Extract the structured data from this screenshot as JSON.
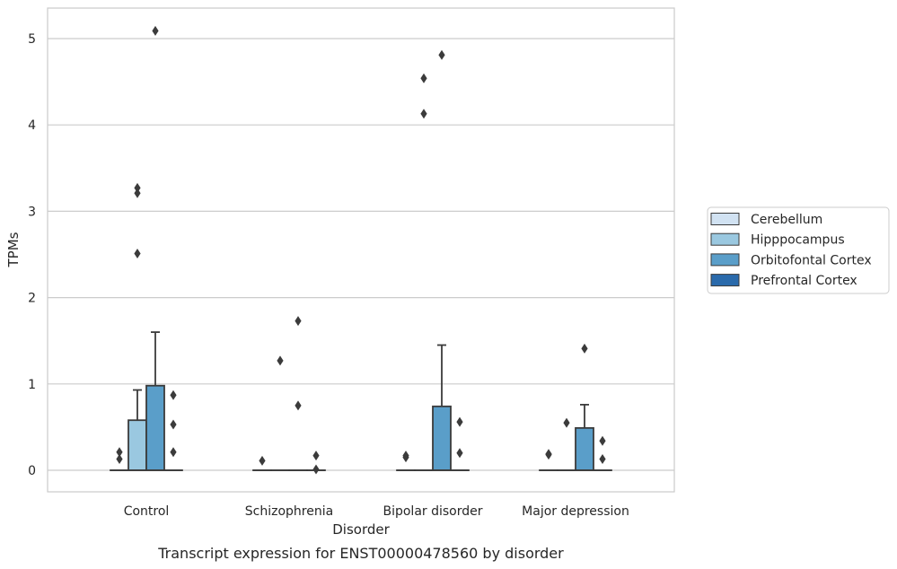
{
  "chart_data": {
    "type": "box",
    "caption": "Transcript expression for ENST00000478560 by disorder",
    "xlabel": "Disorder",
    "ylabel": "TPMs",
    "ylim": [
      -0.25,
      5.35
    ],
    "yticks": [
      0,
      1,
      2,
      3,
      4,
      5
    ],
    "grid": true,
    "legend_position": "right",
    "categories": [
      "Control",
      "Schizophrenia",
      "Bipolar disorder",
      "Major depression"
    ],
    "series": [
      {
        "name": "Cerebellum",
        "color": "#d1e2f2",
        "boxes": [
          {
            "q1": 0,
            "median": 0,
            "q3": 0,
            "whisker_low": 0,
            "whisker_high": 0,
            "outliers": [
              0.13,
              0.21
            ]
          },
          {
            "q1": 0,
            "median": 0,
            "q3": 0,
            "whisker_low": 0,
            "whisker_high": 0,
            "outliers": [
              0.11
            ]
          },
          {
            "q1": 0,
            "median": 0,
            "q3": 0,
            "whisker_low": 0,
            "whisker_high": 0,
            "outliers": [
              0.15,
              0.17
            ]
          },
          {
            "q1": 0,
            "median": 0,
            "q3": 0,
            "whisker_low": 0,
            "whisker_high": 0,
            "outliers": [
              0.18,
              0.19
            ]
          }
        ]
      },
      {
        "name": "Hipppocampus",
        "color": "#9ac8e0",
        "boxes": [
          {
            "q1": 0,
            "median": 0,
            "q3": 0.58,
            "whisker_low": 0,
            "whisker_high": 0.93,
            "outliers": [
              2.51,
              3.21,
              3.27
            ]
          },
          {
            "q1": 0,
            "median": 0,
            "q3": 0,
            "whisker_low": 0,
            "whisker_high": 0,
            "outliers": [
              1.27
            ]
          },
          {
            "q1": 0,
            "median": 0,
            "q3": 0,
            "whisker_low": 0,
            "whisker_high": 0,
            "outliers": [
              4.13,
              4.54
            ]
          },
          {
            "q1": 0,
            "median": 0,
            "q3": 0,
            "whisker_low": 0,
            "whisker_high": 0,
            "outliers": [
              0.55
            ]
          }
        ]
      },
      {
        "name": "Orbitofontal Cortex",
        "color": "#5a9ec9",
        "boxes": [
          {
            "q1": 0,
            "median": 0,
            "q3": 0.98,
            "whisker_low": 0,
            "whisker_high": 1.6,
            "outliers": [
              5.09
            ]
          },
          {
            "q1": 0,
            "median": 0,
            "q3": 0,
            "whisker_low": 0,
            "whisker_high": 0,
            "outliers": [
              0.75,
              1.73
            ]
          },
          {
            "q1": 0,
            "median": 0,
            "q3": 0.74,
            "whisker_low": 0,
            "whisker_high": 1.45,
            "outliers": [
              4.81
            ]
          },
          {
            "q1": 0,
            "median": 0,
            "q3": 0.49,
            "whisker_low": 0,
            "whisker_high": 0.76,
            "outliers": [
              1.41
            ]
          }
        ]
      },
      {
        "name": "Prefrontal Cortex",
        "color": "#2a6aab",
        "boxes": [
          {
            "q1": 0,
            "median": 0,
            "q3": 0,
            "whisker_low": 0,
            "whisker_high": 0,
            "outliers": [
              0.21,
              0.53,
              0.87
            ]
          },
          {
            "q1": 0,
            "median": 0,
            "q3": 0,
            "whisker_low": 0,
            "whisker_high": 0,
            "outliers": [
              0.01,
              0.17
            ]
          },
          {
            "q1": 0,
            "median": 0,
            "q3": 0,
            "whisker_low": 0,
            "whisker_high": 0,
            "outliers": [
              0.2,
              0.56
            ]
          },
          {
            "q1": 0,
            "median": 0,
            "q3": 0,
            "whisker_low": 0,
            "whisker_high": 0,
            "outliers": [
              0.13,
              0.34
            ]
          }
        ]
      }
    ]
  }
}
